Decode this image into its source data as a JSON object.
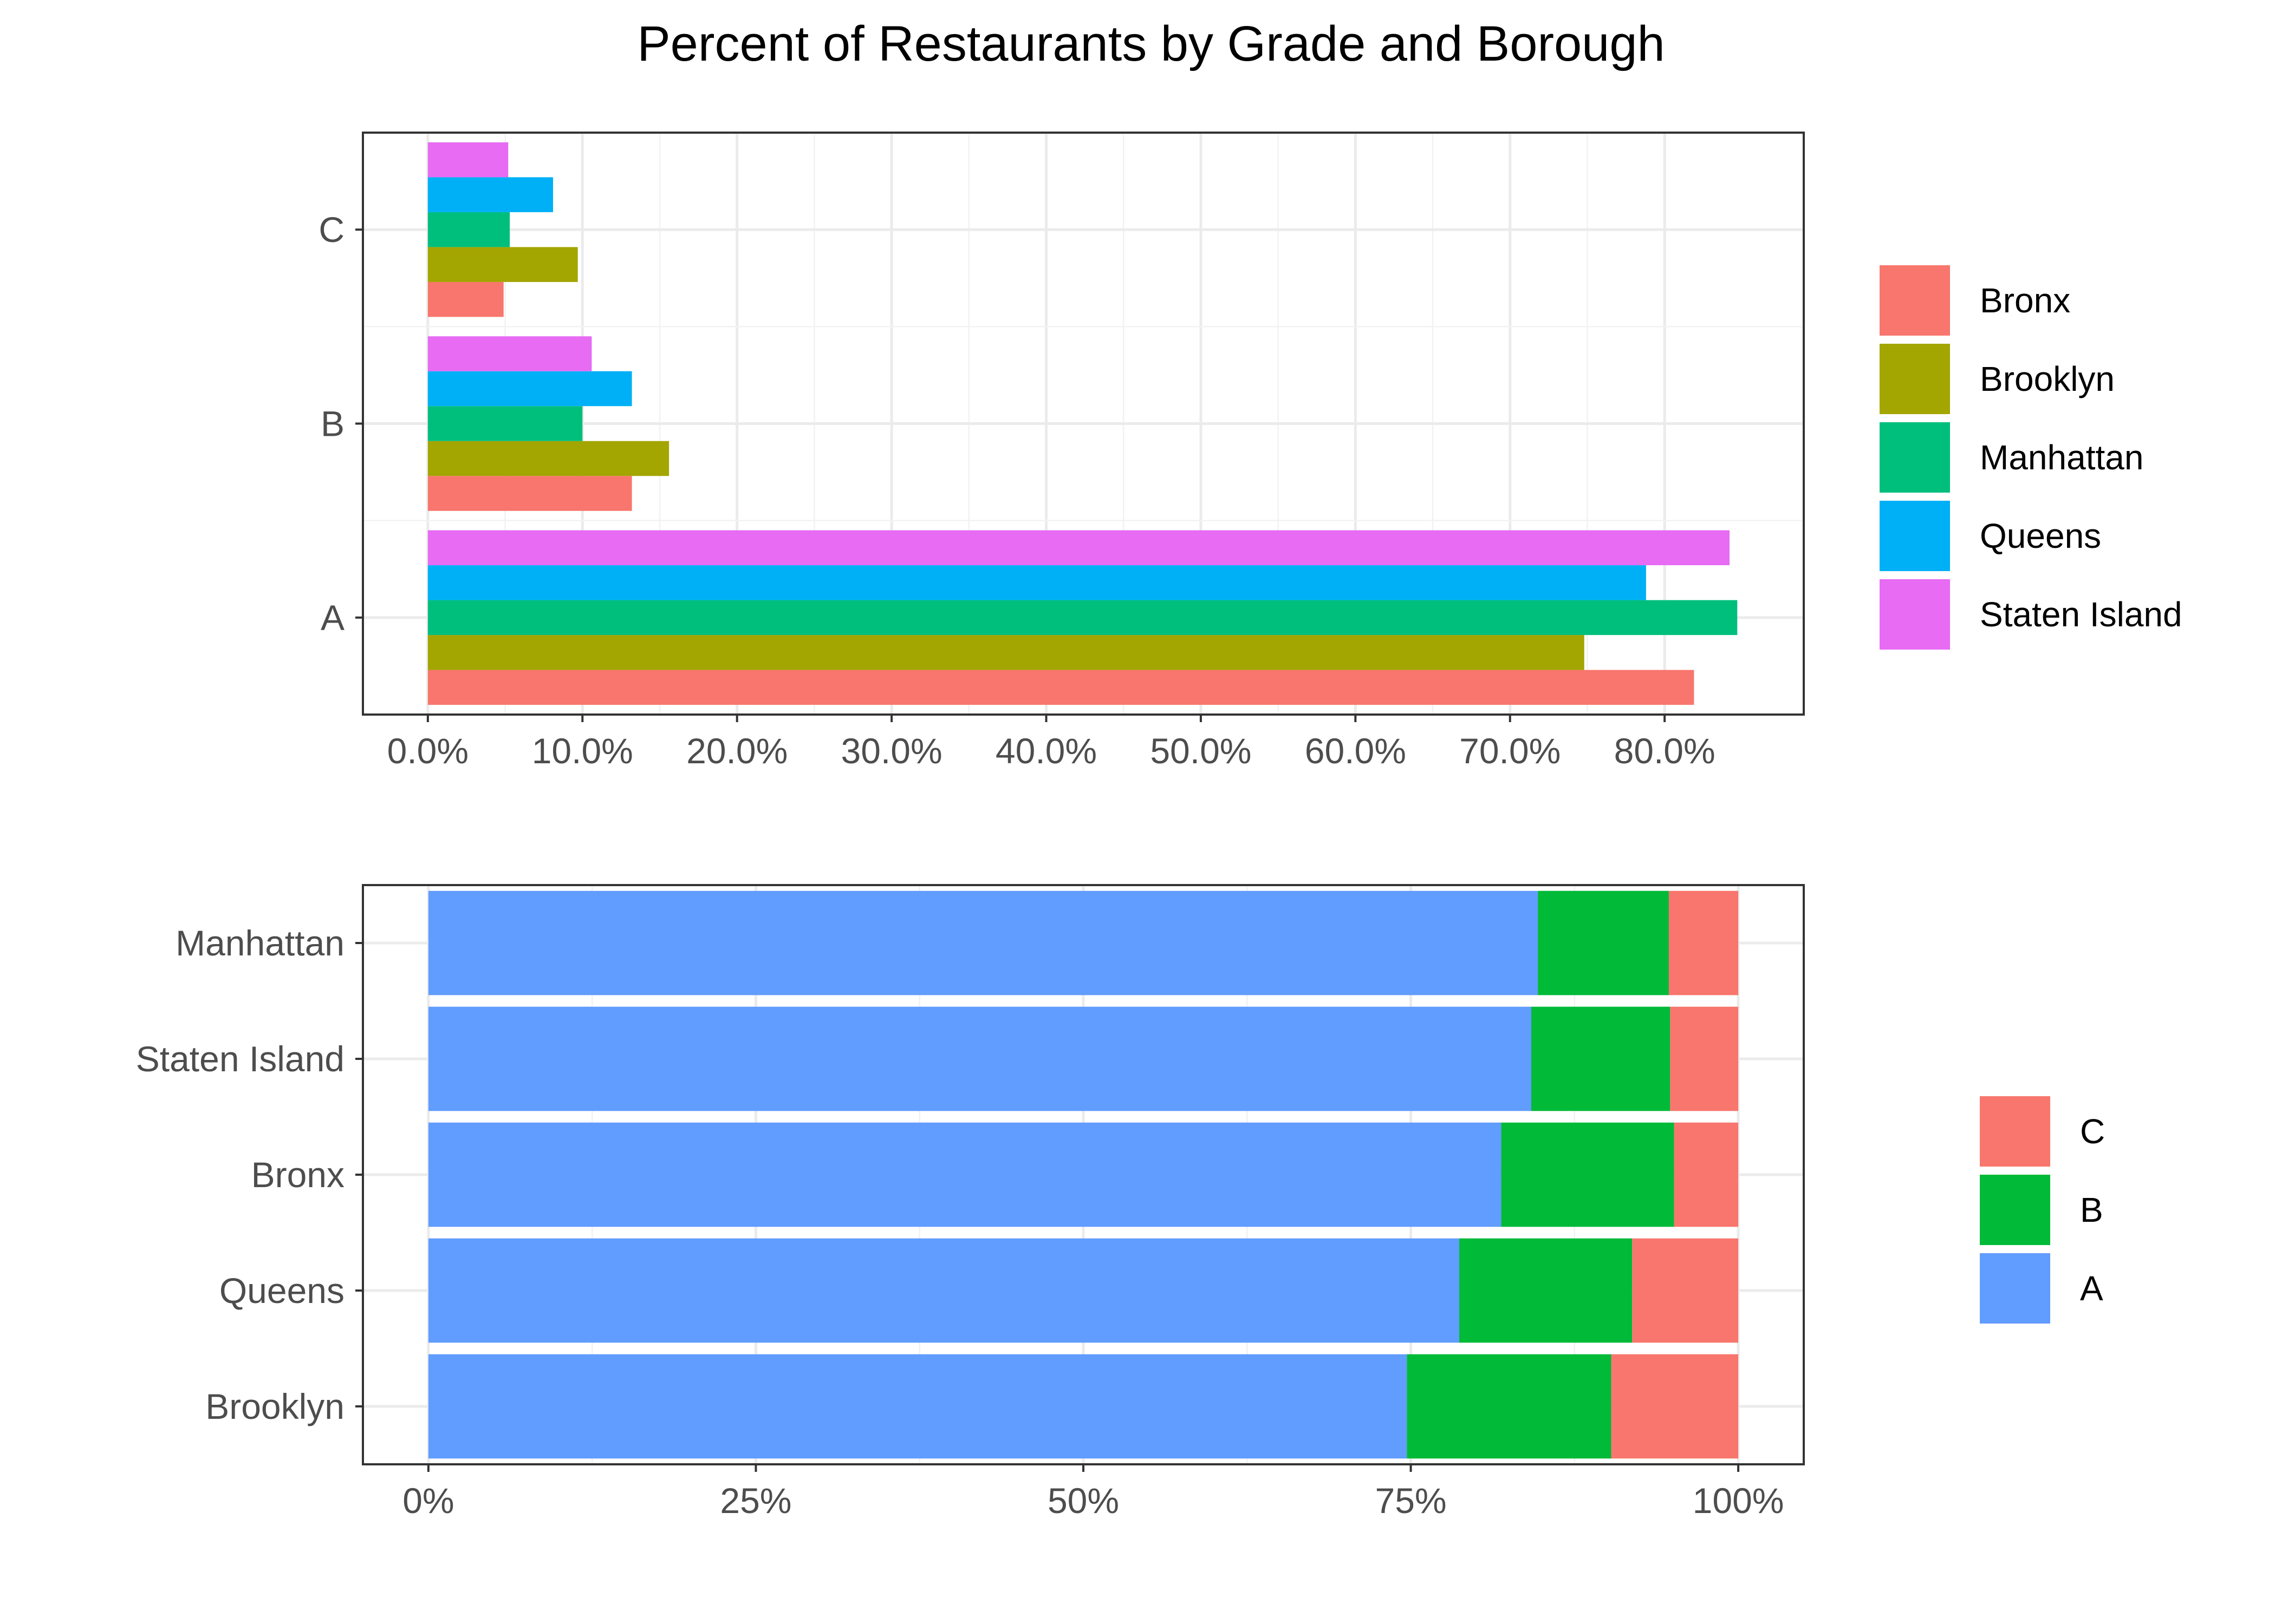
{
  "title": "Percent of Restaurants by Grade and Borough",
  "chart_data": [
    {
      "type": "bar",
      "orientation": "horizontal",
      "position": "dodge",
      "categories": [
        "A",
        "B",
        "C"
      ],
      "series": [
        {
          "name": "Bronx",
          "color": "#F8766D",
          "values": [
            81.9,
            13.2,
            4.9
          ]
        },
        {
          "name": "Brooklyn",
          "color": "#A3A500",
          "values": [
            74.8,
            15.6,
            9.7
          ]
        },
        {
          "name": "Manhattan",
          "color": "#00BF7D",
          "values": [
            84.7,
            10.0,
            5.3
          ]
        },
        {
          "name": "Queens",
          "color": "#00B0F6",
          "values": [
            78.8,
            13.2,
            8.1
          ]
        },
        {
          "name": "Staten Island",
          "color": "#E76BF3",
          "values": [
            84.2,
            10.6,
            5.2
          ]
        }
      ],
      "xlim": [
        -4.2,
        89.0
      ],
      "x_ticks": [
        {
          "value": 0,
          "label": "0.0%"
        },
        {
          "value": 10,
          "label": "10.0%"
        },
        {
          "value": 20,
          "label": "20.0%"
        },
        {
          "value": 30,
          "label": "30.0%"
        },
        {
          "value": 40,
          "label": "40.0%"
        },
        {
          "value": 50,
          "label": "50.0%"
        },
        {
          "value": 60,
          "label": "60.0%"
        },
        {
          "value": 70,
          "label": "70.0%"
        },
        {
          "value": 80,
          "label": "80.0%"
        }
      ],
      "xlabel": "",
      "ylabel": "",
      "grid": true,
      "legend_position": "right"
    },
    {
      "type": "bar",
      "orientation": "horizontal",
      "position": "stack-fill",
      "categories": [
        "Manhattan",
        "Staten Island",
        "Bronx",
        "Queens",
        "Brooklyn"
      ],
      "stack_order": [
        "A",
        "B",
        "C"
      ],
      "series": [
        {
          "name": "C",
          "color": "#F8766D",
          "values": [
            5.3,
            5.2,
            4.9,
            8.1,
            9.7
          ]
        },
        {
          "name": "B",
          "color": "#00BA38",
          "values": [
            10.0,
            10.6,
            13.2,
            13.2,
            15.6
          ]
        },
        {
          "name": "A",
          "color": "#619CFF",
          "values": [
            84.7,
            84.2,
            81.9,
            78.7,
            74.7
          ]
        }
      ],
      "xlim": [
        -5.0,
        105.0
      ],
      "x_ticks": [
        {
          "value": 0,
          "label": "0%"
        },
        {
          "value": 25,
          "label": "25%"
        },
        {
          "value": 50,
          "label": "50%"
        },
        {
          "value": 75,
          "label": "75%"
        },
        {
          "value": 100,
          "label": "100%"
        }
      ],
      "xlabel": "",
      "ylabel": "",
      "grid": true,
      "legend_position": "right"
    }
  ]
}
